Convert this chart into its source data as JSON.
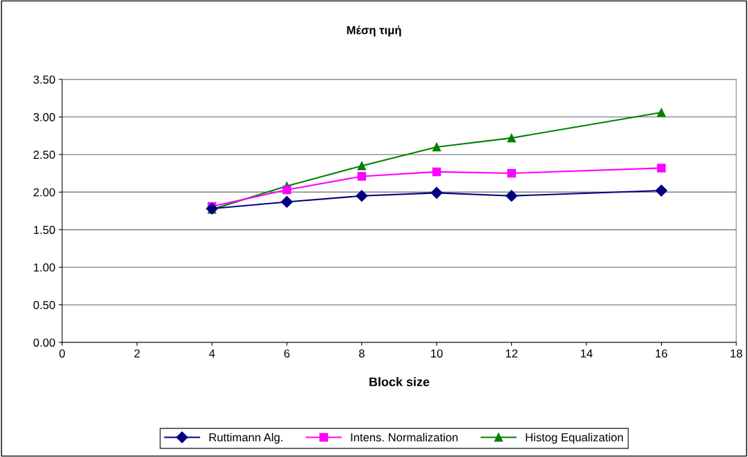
{
  "chart_data": {
    "type": "line",
    "title": "Μέση τιμή",
    "xlabel": "Block size",
    "x": [
      4,
      6,
      8,
      10,
      12,
      16
    ],
    "series": [
      {
        "name": "Ruttimann Alg.",
        "color": "#000080",
        "marker": "diamond",
        "values": [
          1.78,
          1.87,
          1.95,
          1.99,
          1.95,
          2.02
        ]
      },
      {
        "name": "Intens. Normalization",
        "color": "#ff00ff",
        "marker": "square",
        "values": [
          1.81,
          2.03,
          2.21,
          2.27,
          2.25,
          2.32
        ]
      },
      {
        "name": "Histog Equalization",
        "color": "#008000",
        "marker": "triangle",
        "values": [
          1.77,
          2.08,
          2.35,
          2.6,
          2.72,
          3.06
        ]
      }
    ],
    "xlim": [
      0,
      18
    ],
    "xticks": [
      0,
      2,
      4,
      6,
      8,
      10,
      12,
      14,
      16,
      18
    ],
    "ylim": [
      0,
      3.5
    ],
    "yticks": [
      {
        "value": 0,
        "label": "0.00"
      },
      {
        "value": 0.5,
        "label": "0.50"
      },
      {
        "value": 1,
        "label": "1.00"
      },
      {
        "value": 1.5,
        "label": "1.50"
      },
      {
        "value": 2,
        "label": "2.00"
      },
      {
        "value": 2.5,
        "label": "2.50"
      },
      {
        "value": 3,
        "label": "3.00"
      },
      {
        "value": 3.5,
        "label": "3.50"
      }
    ],
    "grid": "y",
    "legend": "bottom"
  }
}
